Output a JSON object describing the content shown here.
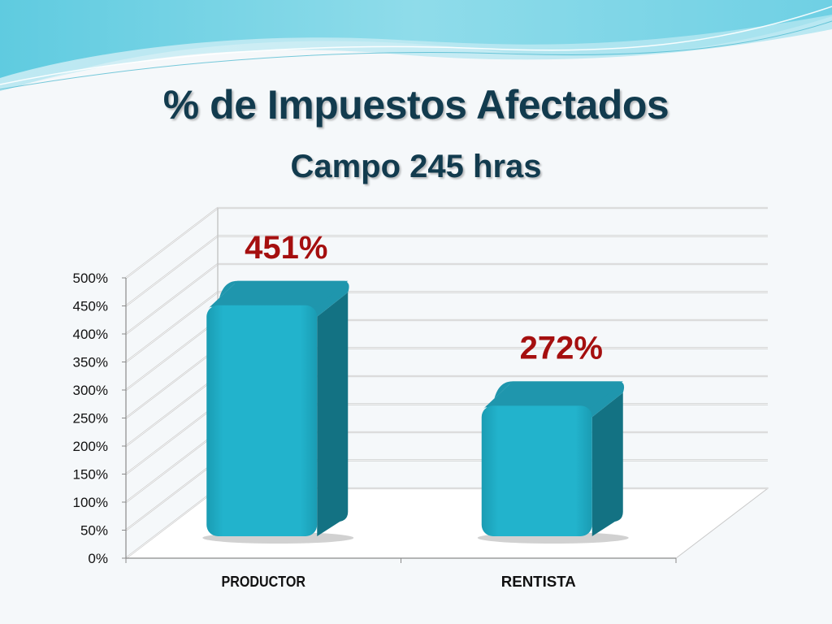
{
  "slide": {
    "title": "% de Impuestos Afectados",
    "subtitle": "Campo 245 hras"
  },
  "chart_data": {
    "type": "bar",
    "title": "% de Impuestos Afectados",
    "subtitle": "Campo 245 hras",
    "categories": [
      "PRODUCTOR",
      "RENTISTA"
    ],
    "values": [
      451,
      272
    ],
    "data_labels": [
      "451%",
      "272%"
    ],
    "unit": "%",
    "ylim": [
      0,
      500
    ],
    "yticks": [
      "0%",
      "50%",
      "100%",
      "150%",
      "200%",
      "250%",
      "300%",
      "350%",
      "400%",
      "450%",
      "500%"
    ],
    "grid": true,
    "style": "3d-column",
    "colors": {
      "bar_front": "#22b3cc",
      "bar_top": "#1f96ad",
      "bar_side": "#137283",
      "data_label": "#a50f0f",
      "title": "#123b4e"
    }
  }
}
